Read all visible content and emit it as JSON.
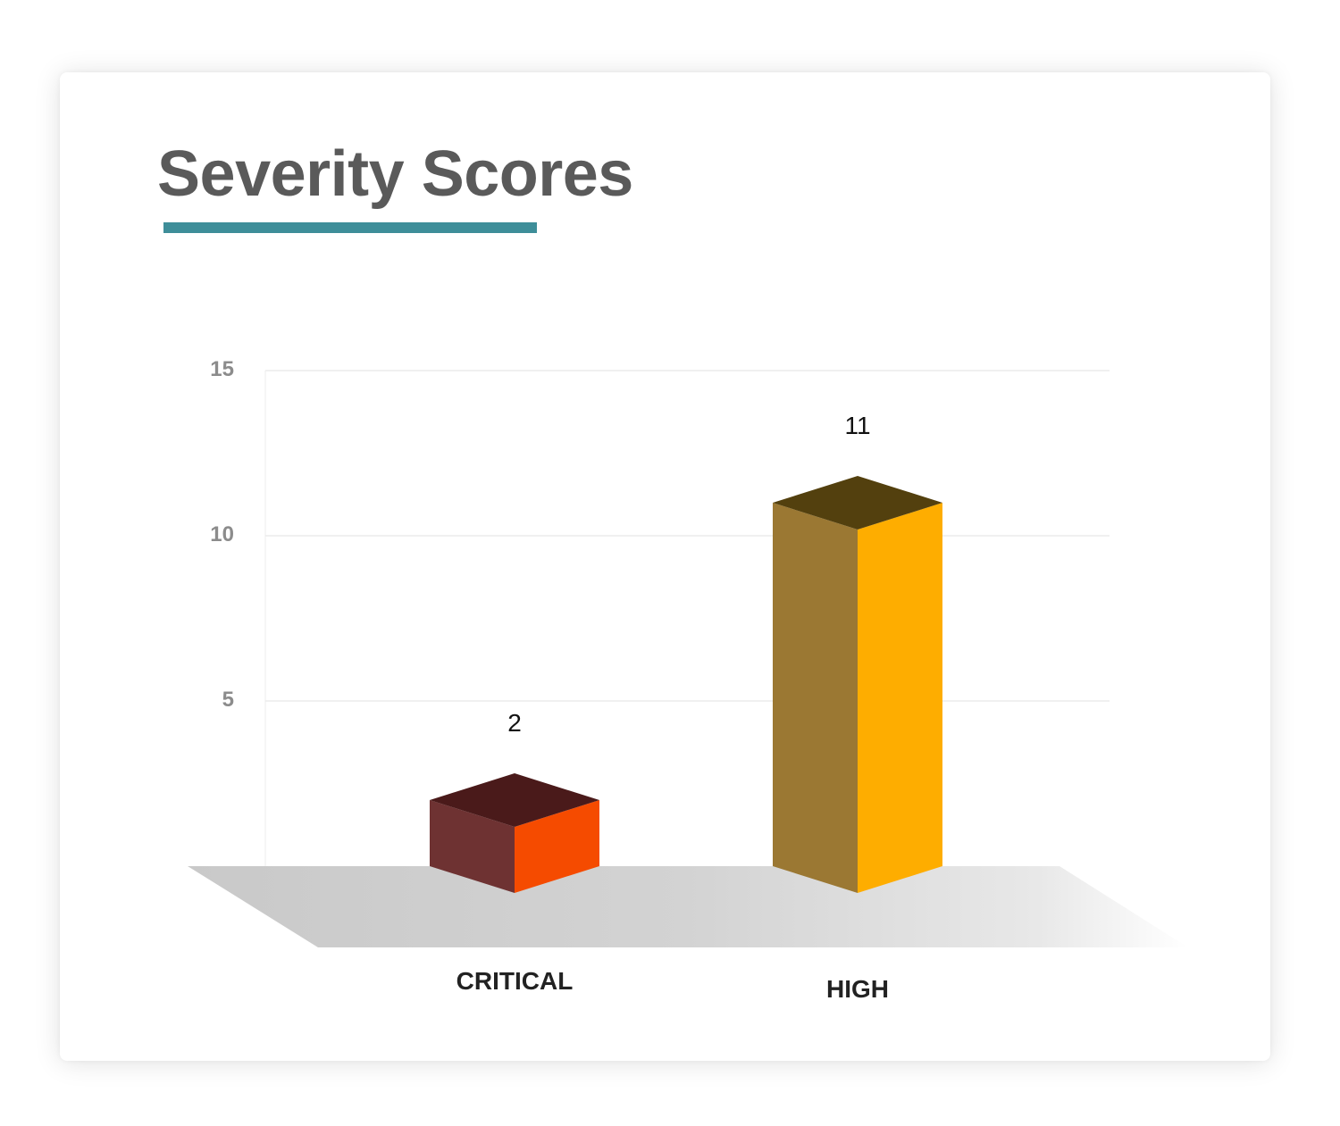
{
  "card": {
    "title": "Severity Scores"
  },
  "chart_data": {
    "type": "bar",
    "title": "Severity Scores",
    "xlabel": "",
    "ylabel": "",
    "categories": [
      "CRITICAL",
      "HIGH"
    ],
    "values": [
      2,
      11
    ],
    "data_labels": [
      "2",
      "11"
    ],
    "y_ticks": [
      5,
      10,
      15
    ],
    "ylim": [
      0,
      15
    ],
    "grid": true,
    "legend": "none",
    "style": "3d-columns",
    "colors": {
      "title": "#5a5a5a",
      "underline": "#3e8e99",
      "CRITICAL": {
        "front": "#f54b00",
        "side": "#6e3232",
        "top": "#4a1a1a"
      },
      "HIGH": {
        "front": "#fead00",
        "side": "#9b7833",
        "top": "#53400e"
      },
      "floor": "#cccccc",
      "gridline": "#ececec",
      "tick_label": "#8c8c8c",
      "category_label": "#222222",
      "value_label": "#111111"
    }
  }
}
